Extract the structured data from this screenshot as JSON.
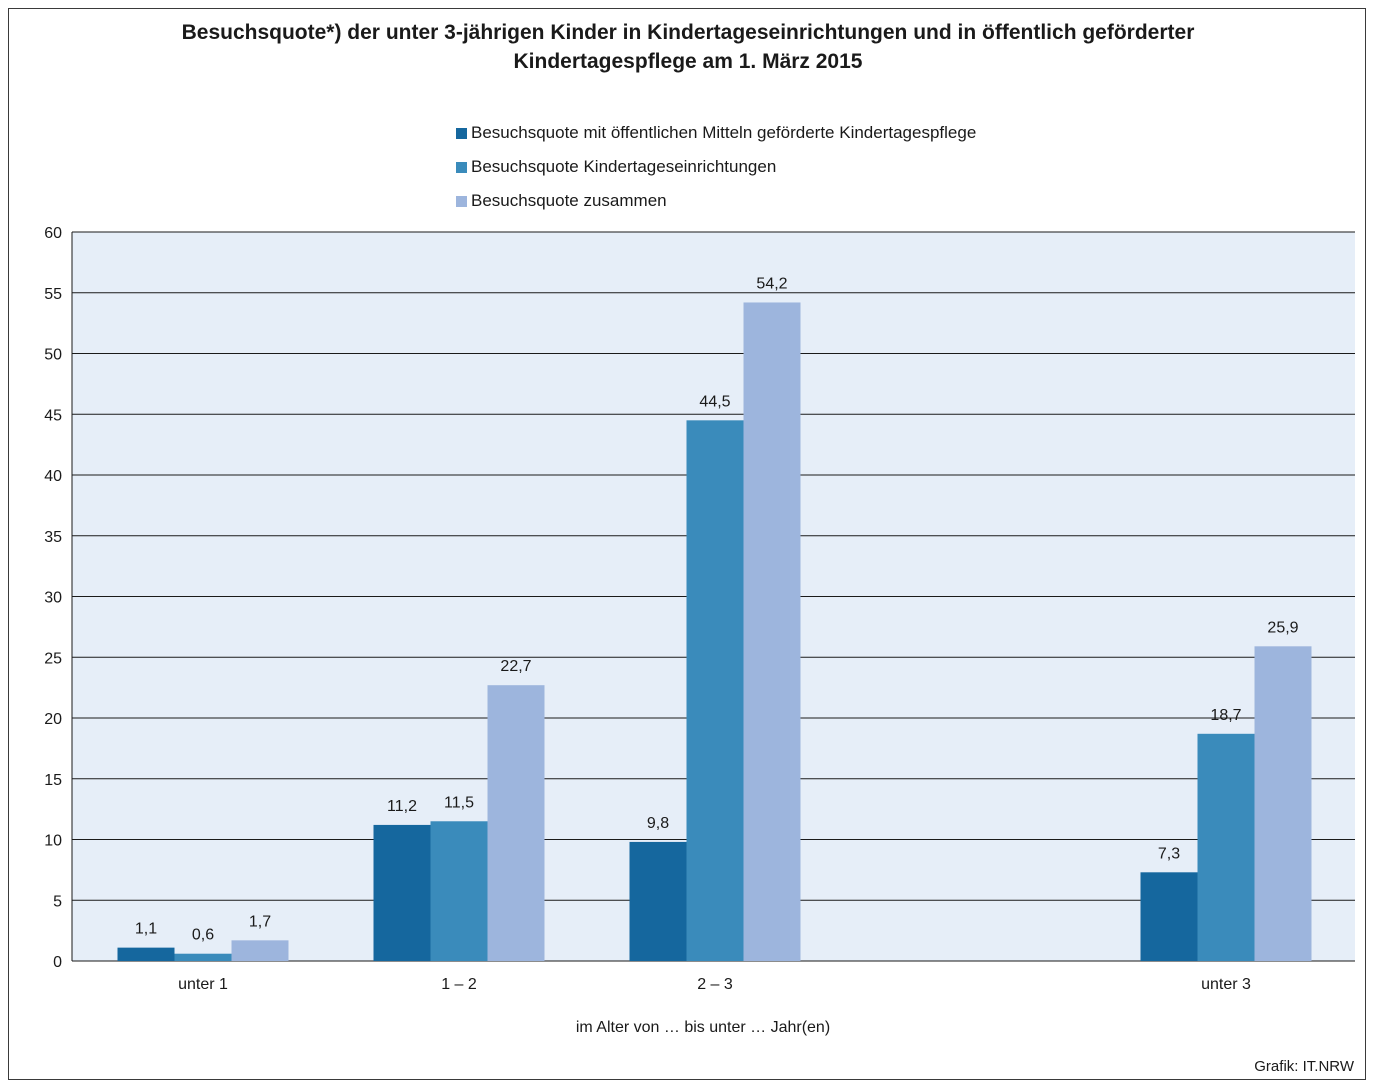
{
  "chart_data": {
    "type": "bar",
    "title": "Besuchsquote*) der unter 3-jährigen Kinder in Kindertageseinrichtungen und in öffentlich geförderter\nKindertagespflege am 1. März 2015",
    "xlabel": "im Alter von … bis unter … Jahr(en)",
    "ylabel": "",
    "ylim": [
      0,
      60
    ],
    "yticks": [
      0,
      5,
      10,
      15,
      20,
      25,
      30,
      35,
      40,
      45,
      50,
      55,
      60
    ],
    "grid": true,
    "legend_position": "top",
    "categories": [
      "unter 1",
      "1 –  2",
      "2 –  3",
      "unter 3"
    ],
    "series": [
      {
        "name": "Besuchsquote mit öffentlichen Mitteln geförderte Kindertagespflege",
        "color": "#15679e",
        "values": [
          1.1,
          11.2,
          9.8,
          7.3
        ],
        "labels": [
          "1,1",
          "11,2",
          "9,8",
          "7,3"
        ]
      },
      {
        "name": "Besuchsquote Kindertageseinrichtungen",
        "color": "#3a8bbb",
        "values": [
          0.6,
          11.5,
          44.5,
          18.7
        ],
        "labels": [
          "0,6",
          "11,5",
          "44,5",
          "18,7"
        ]
      },
      {
        "name": "Besuchsquote zusammen",
        "color": "#9db5dd",
        "values": [
          1.7,
          22.7,
          54.2,
          25.9
        ],
        "labels": [
          "1,7",
          "22,7",
          "54,2",
          "25,9"
        ]
      }
    ]
  },
  "colors": {
    "plot_background": "#e6eef8",
    "gridline": "#1a1a1a"
  },
  "source": "Grafik: IT.NRW"
}
